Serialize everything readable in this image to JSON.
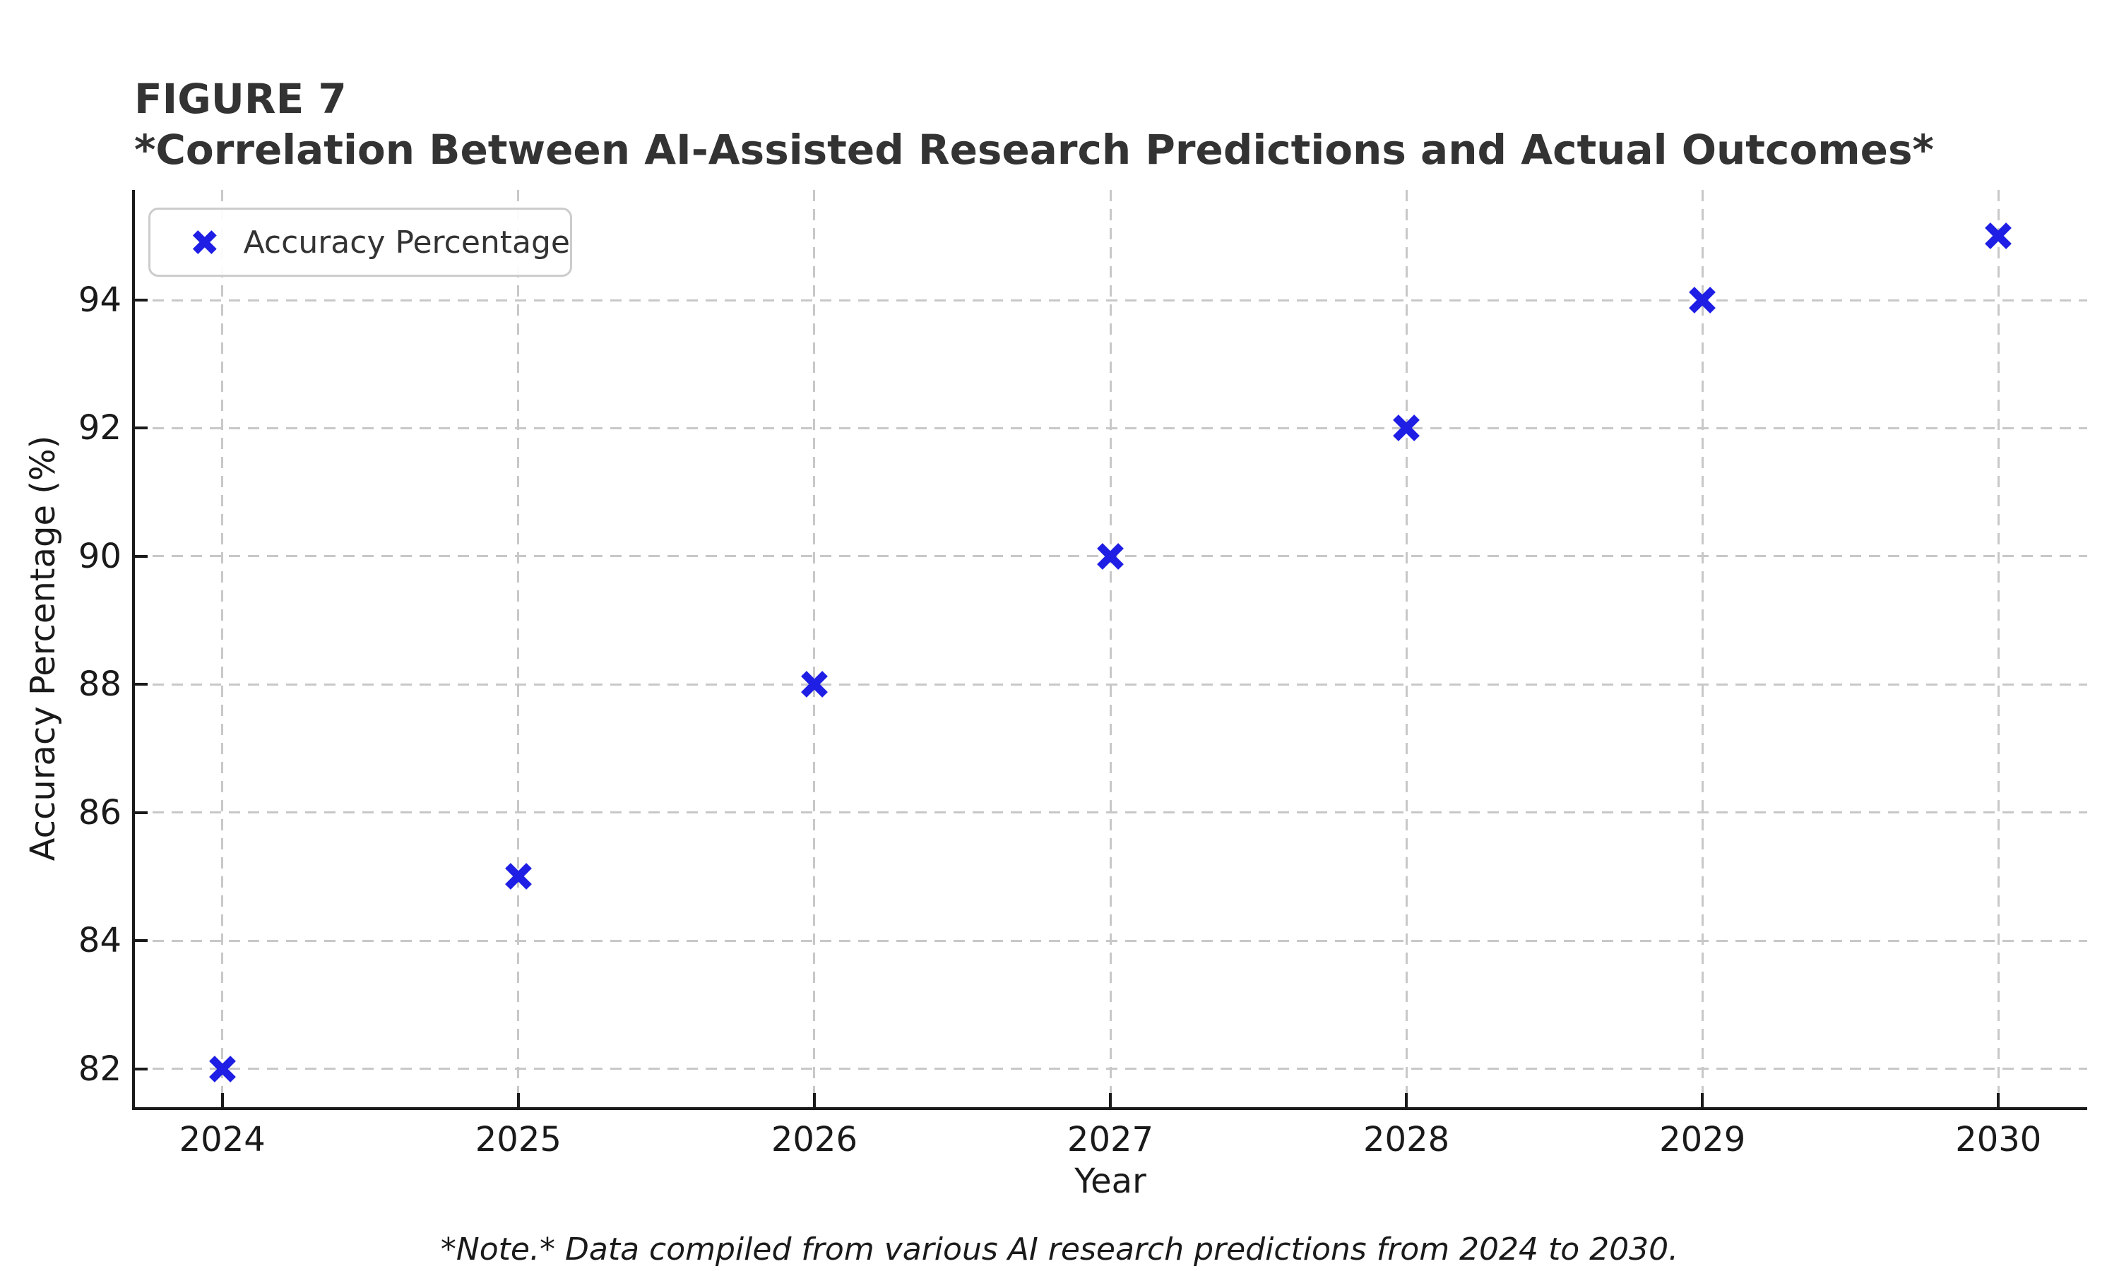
{
  "chart_data": {
    "type": "scatter",
    "figure_label": "FIGURE 7",
    "title": "*Correlation Between AI-Assisted Research Predictions and Actual Outcomes*",
    "note": "*Note.* Data compiled from various AI research predictions from 2024 to 2030.",
    "xlabel": "Year",
    "ylabel": "Accuracy Percentage (%)",
    "legend": {
      "label": "Accuracy Percentage",
      "position": "upper-left"
    },
    "marker": "x",
    "series": [
      {
        "name": "Accuracy Percentage",
        "x": [
          2024,
          2025,
          2026,
          2027,
          2028,
          2029,
          2030
        ],
        "y": [
          82,
          85,
          88,
          90,
          92,
          94,
          95
        ]
      }
    ],
    "xticks": [
      2024,
      2025,
      2026,
      2027,
      2028,
      2029,
      2030
    ],
    "yticks": [
      82,
      84,
      86,
      88,
      90,
      92,
      94
    ],
    "xlim": [
      2023.7,
      2030.3
    ],
    "ylim": [
      81.4,
      95.72
    ],
    "grid": true,
    "grid_style": "dashed",
    "colors": {
      "marker": "#1e1ee4",
      "grid": "#c8c8c8",
      "axis": "#1a1a1a",
      "title_text": "#333333",
      "tick_text": "#1a1a1a",
      "legend_border": "#cccccc",
      "legend_text": "#333333",
      "background": "#ffffff"
    }
  }
}
